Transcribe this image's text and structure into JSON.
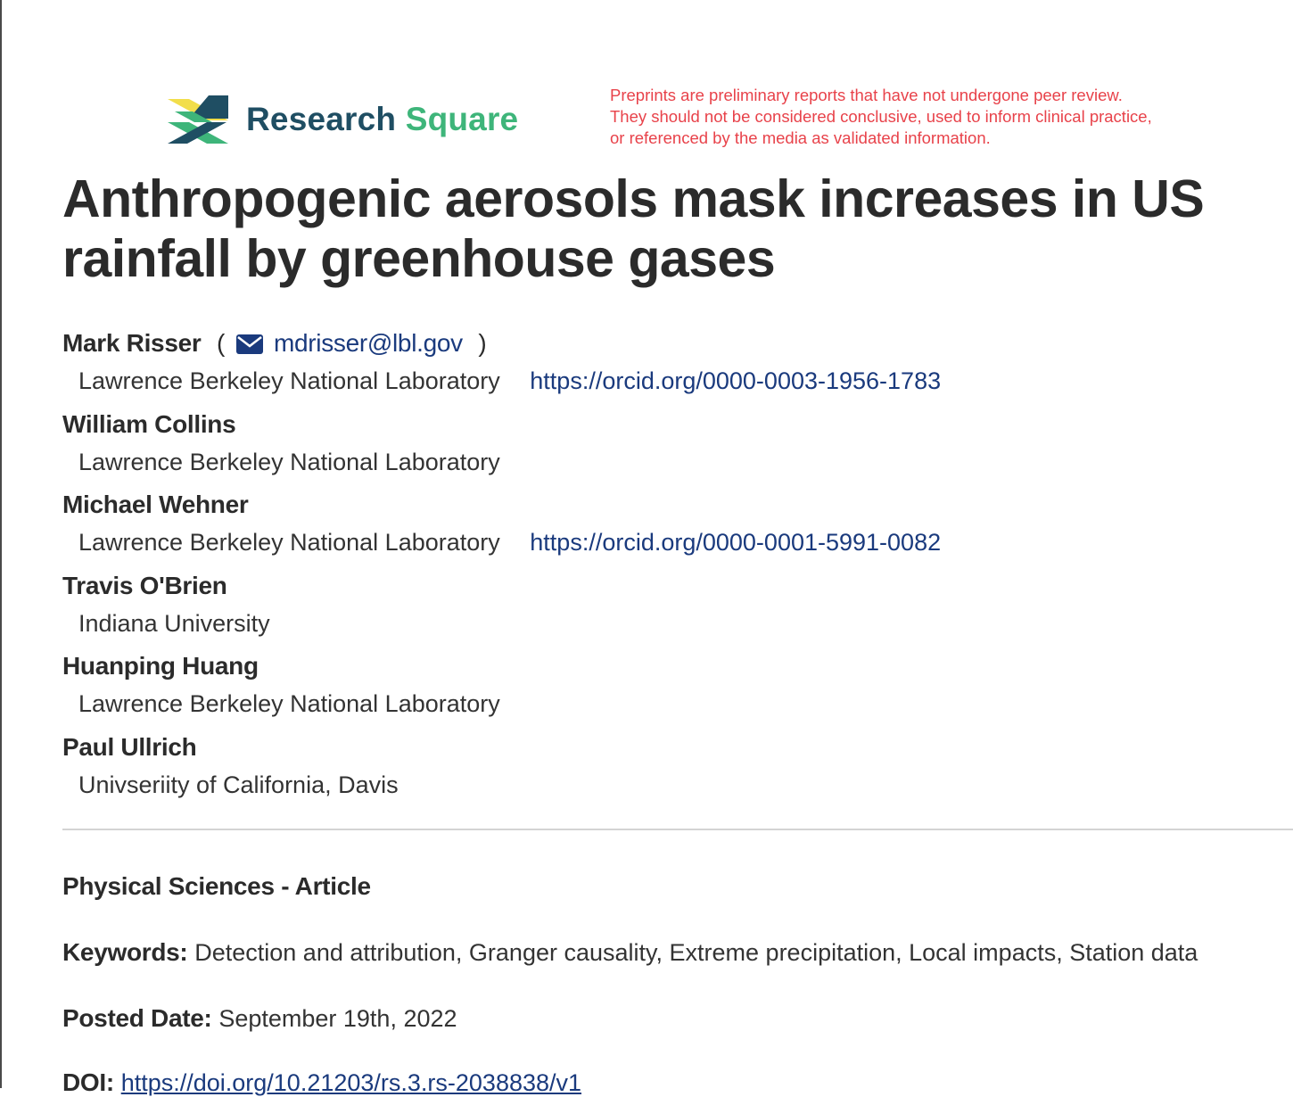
{
  "logo": {
    "brand_part1": "Research",
    "brand_part2": "Square",
    "colors": {
      "navy": "#1f4e63",
      "green": "#3eb57a",
      "yellow": "#f2de4b"
    }
  },
  "disclaimer": {
    "lines": [
      "Preprints are preliminary reports that have not undergone peer review.",
      "They should not be considered conclusive, used to inform clinical practice,",
      "or referenced by the media as validated information."
    ],
    "color": "#e8424a"
  },
  "title": "Anthropogenic aerosols mask increases in US rainfall by greenhouse gases",
  "authors": [
    {
      "name": "Mark Risser",
      "paren_open": "(",
      "email": "mdrisser@lbl.gov",
      "paren_close": ")",
      "affiliation": "Lawrence Berkeley National Laboratory",
      "orcid": "https://orcid.org/0000-0003-1956-1783"
    },
    {
      "name": "William Collins",
      "affiliation": "Lawrence Berkeley National Laboratory"
    },
    {
      "name": "Michael Wehner",
      "affiliation": "Lawrence Berkeley National Laboratory",
      "orcid": "https://orcid.org/0000-0001-5991-0082"
    },
    {
      "name": "Travis O'Brien",
      "affiliation": "Indiana University"
    },
    {
      "name": "Huanping Huang",
      "affiliation": "Lawrence Berkeley National Laboratory"
    },
    {
      "name": "Paul Ullrich",
      "affiliation": "Univseriity of California, Davis"
    }
  ],
  "section_type": "Physical Sciences - Article",
  "keywords": {
    "label": "Keywords:",
    "value": "Detection and attribution, Granger causality, Extreme precipitation, Local impacts, Station data"
  },
  "posted_date": {
    "label": "Posted Date:",
    "value": "September 19th, 2022"
  },
  "doi": {
    "label": "DOI:",
    "value": "https://doi.org/10.21203/rs.3.rs-2038838/v1"
  },
  "link_color": "#1a3a7d"
}
